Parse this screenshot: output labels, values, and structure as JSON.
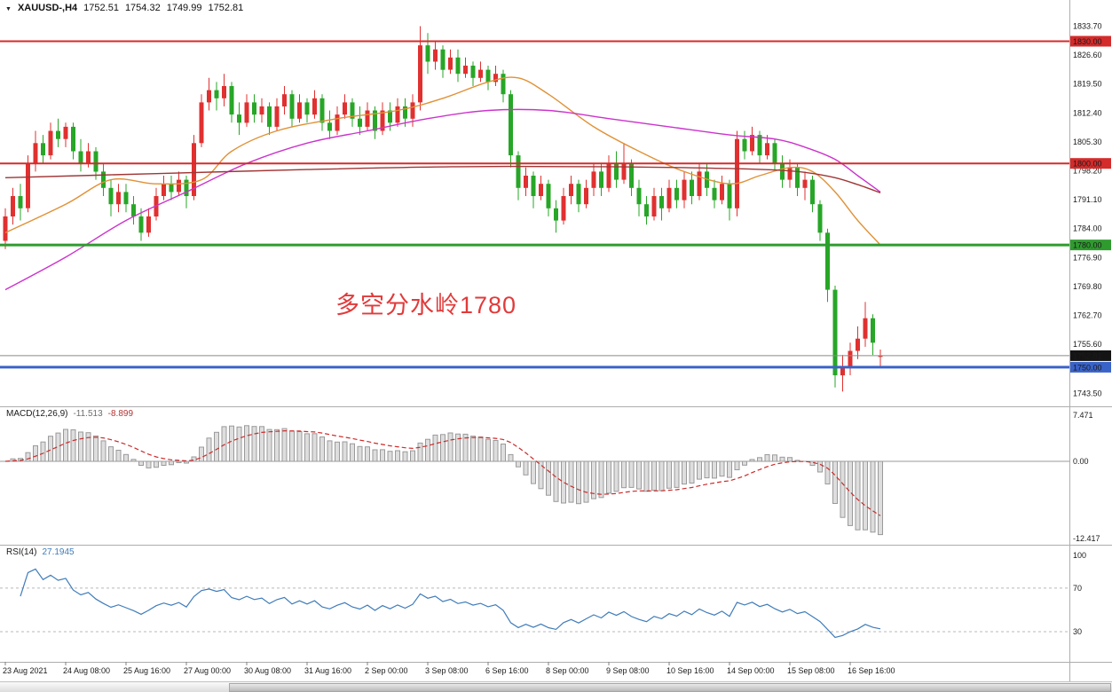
{
  "header": {
    "symbol_period": "XAUUSD-,H4",
    "open": "1752.51",
    "high": "1754.32",
    "low": "1749.99",
    "close": "1752.81"
  },
  "icons": {
    "collapse_triangle": "▼"
  },
  "chart_data": [
    {
      "id": "price-panel",
      "type": "candlestick",
      "symbol": "XAUUSD",
      "timeframe": "H4",
      "up_color": "#e03030",
      "down_color": "#27a627",
      "y_range": {
        "top": 1836.2,
        "bottom": 1743.0
      },
      "price_axis_ticks": [
        "1833.70",
        "1826.60",
        "1819.50",
        "1812.40",
        "1805.30",
        "1798.20",
        "1791.10",
        "1784.00",
        "1776.90",
        "1769.80",
        "1762.70",
        "1755.60",
        "1743.50"
      ],
      "horizontal_levels": [
        {
          "label": "1830.00",
          "price": 1830.0,
          "color": "#d42b2b",
          "width": 2
        },
        {
          "label": "1800.00",
          "price": 1800.0,
          "color": "#d42b2b",
          "width": 2
        },
        {
          "label": "1780.00",
          "price": 1780.0,
          "color": "#2f9b2f",
          "width": 3
        },
        {
          "label": "1750.00",
          "price": 1750.0,
          "color": "#3a63c8",
          "width": 3
        }
      ],
      "current_price": {
        "label": "1752.81",
        "value": 1752.81,
        "line_color": "#8a8a8a",
        "badge_color": "#141414"
      },
      "annotation": {
        "text": "多空分水岭1780",
        "color": "#e23a3a"
      },
      "moving_averages": [
        {
          "name": "ma-fast-orange",
          "color": "#e09135",
          "points": [
            [
              0,
              1783
            ],
            [
              8,
              1790
            ],
            [
              14,
              1796
            ],
            [
              20,
              1795
            ],
            [
              26,
              1796
            ],
            [
              30,
              1803
            ],
            [
              36,
              1808
            ],
            [
              44,
              1811
            ],
            [
              52,
              1813
            ],
            [
              58,
              1816
            ],
            [
              64,
              1820
            ],
            [
              68,
              1821
            ],
            [
              72,
              1817
            ],
            [
              78,
              1809
            ],
            [
              84,
              1803
            ],
            [
              90,
              1798
            ],
            [
              96,
              1795
            ],
            [
              100,
              1797
            ],
            [
              104,
              1799
            ],
            [
              107,
              1798
            ],
            [
              110,
              1793
            ],
            [
              113,
              1786
            ],
            [
              116,
              1780
            ]
          ]
        },
        {
          "name": "ma-mid-magenta",
          "color": "#cc33cc",
          "points": [
            [
              0,
              1769
            ],
            [
              8,
              1777
            ],
            [
              16,
              1786
            ],
            [
              24,
              1793
            ],
            [
              32,
              1800
            ],
            [
              40,
              1805
            ],
            [
              48,
              1808
            ],
            [
              56,
              1811
            ],
            [
              64,
              1813
            ],
            [
              72,
              1813
            ],
            [
              80,
              1811
            ],
            [
              88,
              1809
            ],
            [
              96,
              1807
            ],
            [
              102,
              1806
            ],
            [
              106,
              1804
            ],
            [
              110,
              1801
            ],
            [
              113,
              1797
            ],
            [
              116,
              1793
            ]
          ]
        },
        {
          "name": "ma-slow-darkred",
          "color": "#a03535",
          "points": [
            [
              0,
              1796.5
            ],
            [
              20,
              1797.5
            ],
            [
              40,
              1798.5
            ],
            [
              60,
              1799.2
            ],
            [
              80,
              1799.2
            ],
            [
              95,
              1798.8
            ],
            [
              102,
              1798.4
            ],
            [
              106,
              1797.8
            ],
            [
              110,
              1796.5
            ],
            [
              113,
              1794.8
            ],
            [
              116,
              1792.8
            ]
          ]
        }
      ],
      "time_labels": [
        {
          "text": "23 Aug 2021",
          "bar": 0
        },
        {
          "text": "24 Aug 08:00",
          "bar": 8
        },
        {
          "text": "25 Aug 16:00",
          "bar": 16
        },
        {
          "text": "27 Aug 00:00",
          "bar": 24
        },
        {
          "text": "30 Aug 08:00",
          "bar": 32
        },
        {
          "text": "31 Aug 16:00",
          "bar": 40
        },
        {
          "text": "2 Sep 00:00",
          "bar": 48
        },
        {
          "text": "3 Sep 08:00",
          "bar": 56
        },
        {
          "text": "6 Sep 16:00",
          "bar": 64
        },
        {
          "text": "8 Sep 00:00",
          "bar": 72
        },
        {
          "text": "9 Sep 08:00",
          "bar": 80
        },
        {
          "text": "10 Sep 16:00",
          "bar": 88
        },
        {
          "text": "14 Sep 00:00",
          "bar": 96
        },
        {
          "text": "15 Sep 08:00",
          "bar": 104
        },
        {
          "text": "16 Sep 16:00",
          "bar": 112
        }
      ],
      "candles": [
        [
          1781,
          1789,
          1779,
          1787
        ],
        [
          1787,
          1794,
          1785,
          1792
        ],
        [
          1792,
          1795,
          1786,
          1789
        ],
        [
          1789,
          1802,
          1788,
          1800
        ],
        [
          1800,
          1808,
          1798,
          1805
        ],
        [
          1805,
          1807,
          1800,
          1802
        ],
        [
          1802,
          1810,
          1801,
          1808
        ],
        [
          1808,
          1811,
          1804,
          1806
        ],
        [
          1806,
          1810,
          1804,
          1809
        ],
        [
          1809,
          1810,
          1801,
          1803
        ],
        [
          1803,
          1806,
          1798,
          1800
        ],
        [
          1800,
          1805,
          1799,
          1803
        ],
        [
          1803,
          1804,
          1796,
          1798
        ],
        [
          1798,
          1800,
          1792,
          1794
        ],
        [
          1794,
          1796,
          1787,
          1790
        ],
        [
          1790,
          1795,
          1788,
          1793
        ],
        [
          1793,
          1795,
          1788,
          1790
        ],
        [
          1790,
          1792,
          1785,
          1787
        ],
        [
          1787,
          1789,
          1781,
          1783
        ],
        [
          1783,
          1789,
          1782,
          1787
        ],
        [
          1787,
          1794,
          1786,
          1792
        ],
        [
          1792,
          1797,
          1791,
          1795
        ],
        [
          1795,
          1797,
          1791,
          1793
        ],
        [
          1793,
          1798,
          1792,
          1796
        ],
        [
          1796,
          1797,
          1789,
          1792
        ],
        [
          1792,
          1807,
          1791,
          1805
        ],
        [
          1805,
          1817,
          1804,
          1815
        ],
        [
          1815,
          1821,
          1813,
          1818
        ],
        [
          1818,
          1820,
          1813,
          1816
        ],
        [
          1816,
          1822,
          1814,
          1819
        ],
        [
          1819,
          1820,
          1810,
          1812
        ],
        [
          1812,
          1815,
          1807,
          1810
        ],
        [
          1810,
          1817,
          1809,
          1815
        ],
        [
          1815,
          1817,
          1810,
          1812
        ],
        [
          1812,
          1816,
          1810,
          1814
        ],
        [
          1814,
          1815,
          1807,
          1809
        ],
        [
          1809,
          1816,
          1808,
          1814
        ],
        [
          1814,
          1819,
          1812,
          1817
        ],
        [
          1817,
          1818,
          1809,
          1811
        ],
        [
          1811,
          1817,
          1810,
          1815
        ],
        [
          1815,
          1816,
          1810,
          1812
        ],
        [
          1812,
          1818,
          1811,
          1816
        ],
        [
          1816,
          1817,
          1808,
          1810
        ],
        [
          1810,
          1813,
          1806,
          1808
        ],
        [
          1808,
          1814,
          1807,
          1812
        ],
        [
          1812,
          1817,
          1811,
          1815
        ],
        [
          1815,
          1816,
          1809,
          1811
        ],
        [
          1811,
          1814,
          1807,
          1809
        ],
        [
          1809,
          1815,
          1808,
          1813
        ],
        [
          1813,
          1814,
          1806,
          1808
        ],
        [
          1808,
          1815,
          1807,
          1813
        ],
        [
          1813,
          1815,
          1808,
          1810
        ],
        [
          1810,
          1816,
          1809,
          1814
        ],
        [
          1814,
          1816,
          1809,
          1811
        ],
        [
          1811,
          1817,
          1809,
          1815
        ],
        [
          1815,
          1833.7,
          1813,
          1829
        ],
        [
          1829,
          1832,
          1822,
          1825
        ],
        [
          1825,
          1830,
          1823,
          1828
        ],
        [
          1828,
          1829,
          1821,
          1823
        ],
        [
          1823,
          1828,
          1822,
          1826
        ],
        [
          1826,
          1828,
          1820,
          1822
        ],
        [
          1822,
          1826,
          1821,
          1824
        ],
        [
          1824,
          1825,
          1819,
          1821
        ],
        [
          1821,
          1825,
          1820,
          1823
        ],
        [
          1823,
          1824,
          1818,
          1820
        ],
        [
          1820,
          1824,
          1819,
          1822
        ],
        [
          1822,
          1823,
          1815,
          1817
        ],
        [
          1817,
          1818,
          1799,
          1802
        ],
        [
          1802,
          1803,
          1791,
          1794
        ],
        [
          1794,
          1799,
          1792,
          1797
        ],
        [
          1797,
          1798,
          1789,
          1792
        ],
        [
          1792,
          1797,
          1791,
          1795
        ],
        [
          1795,
          1796,
          1787,
          1789
        ],
        [
          1789,
          1791,
          1783,
          1786
        ],
        [
          1786,
          1794,
          1785,
          1792
        ],
        [
          1792,
          1797,
          1790,
          1795
        ],
        [
          1795,
          1796,
          1788,
          1790
        ],
        [
          1790,
          1796,
          1789,
          1794
        ],
        [
          1794,
          1800,
          1792,
          1798
        ],
        [
          1798,
          1800,
          1792,
          1794
        ],
        [
          1794,
          1802,
          1793,
          1800
        ],
        [
          1800,
          1803,
          1794,
          1796
        ],
        [
          1796,
          1805,
          1795,
          1800
        ],
        [
          1800,
          1801,
          1792,
          1794
        ],
        [
          1794,
          1796,
          1787,
          1790
        ],
        [
          1790,
          1792,
          1785,
          1787
        ],
        [
          1787,
          1794,
          1786,
          1792
        ],
        [
          1792,
          1794,
          1786,
          1789
        ],
        [
          1789,
          1796,
          1788,
          1794
        ],
        [
          1794,
          1796,
          1789,
          1791
        ],
        [
          1791,
          1798,
          1789,
          1796
        ],
        [
          1796,
          1798,
          1790,
          1792
        ],
        [
          1792,
          1800,
          1791,
          1798
        ],
        [
          1798,
          1800,
          1792,
          1794
        ],
        [
          1794,
          1796,
          1789,
          1791
        ],
        [
          1791,
          1797,
          1790,
          1795
        ],
        [
          1795,
          1796,
          1786,
          1789
        ],
        [
          1789,
          1808,
          1787,
          1806
        ],
        [
          1806,
          1808,
          1801,
          1803
        ],
        [
          1803,
          1809,
          1802,
          1807
        ],
        [
          1807,
          1808,
          1800,
          1802
        ],
        [
          1802,
          1807,
          1801,
          1805
        ],
        [
          1805,
          1806,
          1798,
          1800
        ],
        [
          1800,
          1802,
          1794,
          1796
        ],
        [
          1796,
          1801,
          1794,
          1799
        ],
        [
          1799,
          1800,
          1792,
          1794
        ],
        [
          1794,
          1798,
          1791,
          1796
        ],
        [
          1796,
          1797,
          1788,
          1790
        ],
        [
          1790,
          1791,
          1781,
          1783
        ],
        [
          1783,
          1784,
          1766,
          1769
        ],
        [
          1769,
          1770,
          1745,
          1748
        ],
        [
          1748,
          1753,
          1744,
          1750
        ],
        [
          1750,
          1756,
          1748,
          1754
        ],
        [
          1754,
          1760,
          1752,
          1757
        ],
        [
          1757,
          1766,
          1755,
          1762
        ],
        [
          1762,
          1763,
          1753,
          1756
        ],
        [
          1752.51,
          1754.32,
          1749.99,
          1752.81
        ]
      ]
    },
    {
      "id": "macd-panel",
      "type": "bar",
      "name": "MACD(12,26,9)",
      "main_value": "-11.513",
      "signal_value": "-8.899",
      "fast": 12,
      "slow": 26,
      "signal": 9,
      "ticks": [
        {
          "label": "7.471",
          "value": 7.471
        },
        {
          "label": "0.00",
          "value": 0
        },
        {
          "label": "-12.417",
          "value": -12.417
        }
      ],
      "histogram_fill": "#dedede",
      "histogram_stroke": "#9a9a9a",
      "signal_color": "#cc2a2a",
      "zero_line_color": "#9a9a9a"
    },
    {
      "id": "rsi-panel",
      "type": "line",
      "name": "RSI(14)",
      "value": "27.1945",
      "period": 14,
      "ticks": [
        {
          "label": "100",
          "value": 100
        },
        {
          "label": "70",
          "value": 70
        },
        {
          "label": "30",
          "value": 30
        }
      ],
      "levels": [
        70,
        30
      ],
      "line_color": "#3f7cba",
      "level_color": "#b8b8b8"
    }
  ]
}
